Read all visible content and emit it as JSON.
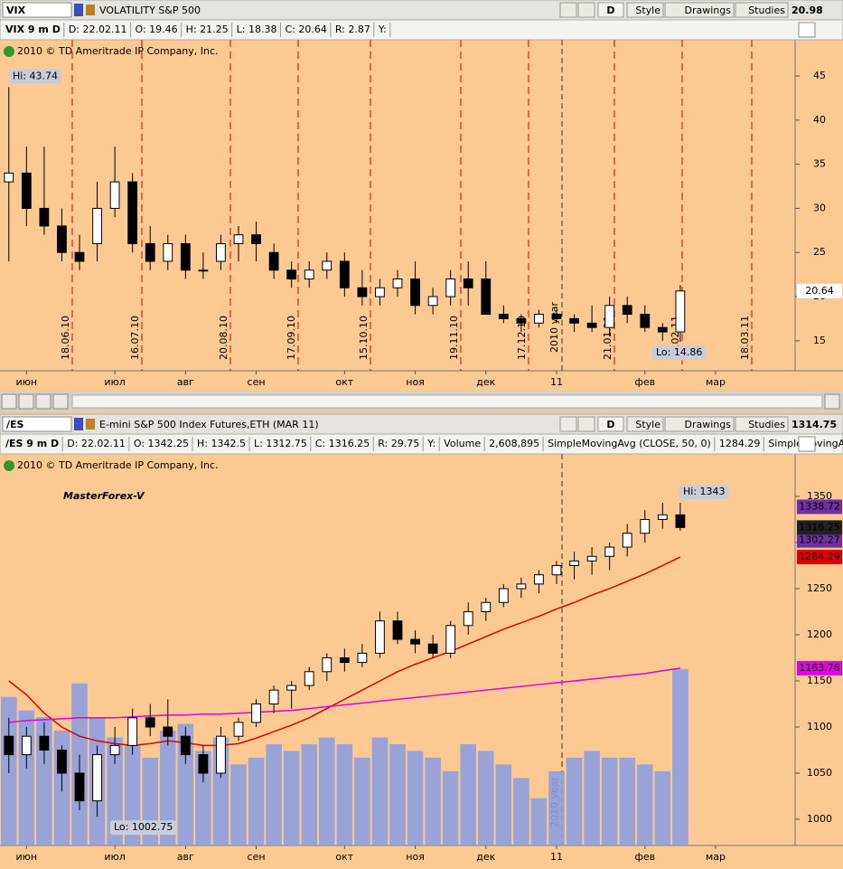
{
  "toolbar_buttons": [
    "D",
    "Style",
    "Drawings",
    "Studies"
  ],
  "copyright": "2010 © TD Ameritrade IP Company, Inc.",
  "watermark": "MasterForex-V",
  "chart_data": [
    {
      "type": "candlestick",
      "symbol": "VIX",
      "description": "VOLATILITY S&P 500",
      "last": 20.98,
      "info": [
        {
          "text": "VIX 9 m D",
          "color": "#0a7a0a"
        },
        {
          "text": "D: 22.02.11"
        },
        {
          "text": "O: 19.46"
        },
        {
          "text": "H: 21.25"
        },
        {
          "text": "L: 18.38"
        },
        {
          "text": "C: 20.64"
        },
        {
          "text": "R: 2.87"
        },
        {
          "text": "Y:"
        }
      ],
      "categories": [
        null,
        "июн",
        null,
        null,
        null,
        null,
        "июл",
        null,
        null,
        null,
        "авг",
        null,
        null,
        null,
        "сен",
        null,
        null,
        null,
        null,
        "окт",
        null,
        null,
        null,
        "ноя",
        null,
        null,
        null,
        "дек",
        null,
        null,
        null,
        "11",
        null,
        null,
        null,
        null,
        "фев",
        null,
        null,
        null,
        "мар",
        null,
        null,
        null,
        null
      ],
      "open": [
        33,
        34,
        30,
        28,
        25,
        26,
        30,
        33,
        26,
        24,
        26,
        23,
        24,
        26,
        27,
        25,
        23,
        22,
        23,
        24,
        21,
        20,
        21,
        22,
        19,
        20,
        22,
        22,
        18,
        17.5,
        17,
        18,
        17.5,
        17,
        16.5,
        19,
        18,
        16.5,
        16,
        null,
        null,
        null,
        null,
        null,
        null
      ],
      "high": [
        43.74,
        37,
        37,
        30,
        27,
        33,
        37,
        34,
        28,
        27,
        27,
        25,
        27,
        28,
        28.5,
        26,
        24,
        24,
        25,
        25,
        23,
        22,
        23,
        24,
        21,
        23,
        24,
        24,
        19,
        18,
        18.5,
        18.5,
        18,
        19,
        20,
        20,
        19,
        17,
        21.3,
        null,
        null,
        null,
        null,
        null,
        null
      ],
      "low": [
        24,
        28,
        27,
        24,
        23,
        24,
        29,
        25,
        23,
        23,
        22,
        22,
        23,
        24,
        24,
        22,
        21,
        21,
        22,
        20,
        19,
        19,
        20,
        18,
        18,
        19,
        19,
        18,
        17,
        16,
        16.5,
        17,
        16,
        16,
        15.5,
        17,
        16,
        15,
        14.86,
        null,
        null,
        null,
        null,
        null,
        null
      ],
      "close": [
        34,
        30,
        28,
        25,
        24,
        30,
        33,
        26,
        24,
        26,
        23,
        23,
        26,
        27,
        26,
        23,
        22,
        23,
        24,
        21,
        20,
        21,
        22,
        19,
        20,
        22,
        21,
        18,
        17.5,
        17,
        18,
        17.5,
        17,
        16.5,
        19,
        18,
        16.5,
        16,
        20.64,
        null,
        null,
        null,
        null,
        null,
        null
      ],
      "ylim": [
        11.6,
        49.1
      ],
      "yticks": [
        15,
        20,
        25,
        30,
        35,
        40,
        45
      ],
      "hi_label": "Hi: 43.74",
      "lo_label": "Lo: 14.86",
      "markers": [
        "18.06.10",
        "16.07.10",
        "20.08.10",
        "17.09.10",
        "15.10.10",
        "19.11.10",
        "17.12.10",
        "21.01.11",
        "18.02.11",
        "18.03.11"
      ],
      "year_label": "2010 year",
      "up_color": "#ffffff",
      "down_color": "#000000"
    },
    {
      "type": "candlestick",
      "symbol": "/ES",
      "description": "E-mini S&P 500 Index Futures,ETH (MAR 11)",
      "last": 1314.75,
      "info": [
        {
          "text": "/ES 9 m D",
          "color": "#0a7a0a"
        },
        {
          "text": "D: 22.02.11"
        },
        {
          "text": "O: 1342.25"
        },
        {
          "text": "H: 1342.5"
        },
        {
          "text": "L: 1312.75"
        },
        {
          "text": "C: 1316.25"
        },
        {
          "text": "R: 29.75"
        },
        {
          "text": "Y:"
        },
        {
          "text": "Volume"
        },
        {
          "text": "2,608,895"
        }
      ],
      "categories": [
        null,
        "июн",
        null,
        null,
        null,
        null,
        "июл",
        null,
        null,
        null,
        "авг",
        null,
        null,
        null,
        "сен",
        null,
        null,
        null,
        null,
        "окт",
        null,
        null,
        null,
        "ноя",
        null,
        null,
        null,
        "дек",
        null,
        null,
        null,
        "11",
        null,
        null,
        null,
        null,
        "фев",
        null,
        null,
        null,
        "мар",
        null,
        null,
        null,
        null
      ],
      "open": [
        1090,
        1070,
        1090,
        1075,
        1050,
        1020,
        1070,
        1080,
        1110,
        1100,
        1090,
        1070,
        1050,
        1090,
        1105,
        1125,
        1140,
        1145,
        1160,
        1175,
        1170,
        1180,
        1215,
        1195,
        1190,
        1180,
        1210,
        1225,
        1235,
        1250,
        1255,
        1265,
        1275,
        1280,
        1285,
        1295,
        1310,
        1325,
        1330,
        null,
        null,
        null,
        null,
        null,
        null
      ],
      "high": [
        1110,
        1100,
        1105,
        1080,
        1070,
        1080,
        1100,
        1120,
        1125,
        1130,
        1100,
        1080,
        1100,
        1110,
        1130,
        1145,
        1150,
        1165,
        1180,
        1185,
        1190,
        1225,
        1225,
        1205,
        1200,
        1215,
        1235,
        1240,
        1255,
        1262,
        1270,
        1280,
        1290,
        1295,
        1300,
        1320,
        1335,
        1343,
        1343,
        null,
        null,
        null,
        null,
        null,
        null
      ],
      "low": [
        1050,
        1055,
        1060,
        1030,
        1010,
        1002.75,
        1060,
        1070,
        1090,
        1080,
        1060,
        1040,
        1045,
        1085,
        1100,
        1115,
        1120,
        1140,
        1150,
        1160,
        1165,
        1175,
        1190,
        1180,
        1175,
        1175,
        1200,
        1215,
        1230,
        1240,
        1245,
        1255,
        1260,
        1265,
        1270,
        1285,
        1300,
        1315,
        1312.75,
        null,
        null,
        null,
        null,
        null,
        null
      ],
      "close": [
        1070,
        1090,
        1075,
        1050,
        1020,
        1070,
        1080,
        1110,
        1100,
        1090,
        1070,
        1050,
        1090,
        1105,
        1125,
        1140,
        1145,
        1160,
        1175,
        1170,
        1180,
        1215,
        1195,
        1190,
        1180,
        1210,
        1225,
        1235,
        1250,
        1255,
        1265,
        1275,
        1280,
        1285,
        1295,
        1310,
        1325,
        1330,
        1316.25,
        null,
        null,
        null,
        null,
        null,
        null
      ],
      "volume": [
        2200000,
        2000000,
        1900000,
        1700000,
        2400000,
        1900000,
        1600000,
        1500000,
        1300000,
        1700000,
        1800000,
        1400000,
        1600000,
        1200000,
        1300000,
        1500000,
        1400000,
        1500000,
        1600000,
        1500000,
        1300000,
        1600000,
        1500000,
        1400000,
        1300000,
        1100000,
        1500000,
        1400000,
        1200000,
        1000000,
        700000,
        1100000,
        1300000,
        1400000,
        1300000,
        1300000,
        1200000,
        1100000,
        2608895,
        null,
        null,
        null,
        null,
        null,
        null
      ],
      "volume_color": "#8e9fe0",
      "series": [
        {
          "name": "SimpleMovingAvg (CLOSE, 50, 0)",
          "color": "#e00000",
          "values": [
            1150,
            1135,
            1115,
            1100,
            1090,
            1085,
            1082,
            1080,
            1082,
            1085,
            1083,
            1080,
            1080,
            1082,
            1088,
            1095,
            1102,
            1110,
            1120,
            1130,
            1140,
            1150,
            1160,
            1168,
            1175,
            1182,
            1190,
            1198,
            1206,
            1213,
            1220,
            1228,
            1235,
            1243,
            1250,
            1258,
            1266,
            1275,
            1284.29,
            null,
            null,
            null,
            null,
            null,
            null
          ]
        },
        {
          "name": "SimpleMovingAvg (CLO...",
          "color": "#e000e0",
          "values": [
            1105,
            1107,
            1108,
            1109,
            1110,
            1110,
            1110,
            1111,
            1112,
            1113,
            1113,
            1114,
            1114,
            1115,
            1116,
            1117,
            1118,
            1120,
            1122,
            1124,
            1126,
            1128,
            1130,
            1132,
            1134,
            1136,
            1138,
            1140,
            1142,
            1144,
            1146,
            1148,
            1150,
            1152,
            1154,
            1156,
            1158,
            1161,
            1163.76,
            null,
            null,
            null,
            null,
            null,
            null
          ]
        }
      ],
      "profile_levels": [
        1338.72,
        1302.27
      ],
      "profile_color": "#7030a0",
      "ylim": [
        971.6,
        1396
      ],
      "yticks": [
        1000,
        1050,
        1100,
        1150,
        1200,
        1250,
        1300,
        1350
      ],
      "hi_label": "Hi: 1343",
      "lo_label": "Lo: 1002.75",
      "markers": [],
      "year_label": "2010 year",
      "up_color": "#ffffff",
      "down_color": "#000000"
    }
  ]
}
